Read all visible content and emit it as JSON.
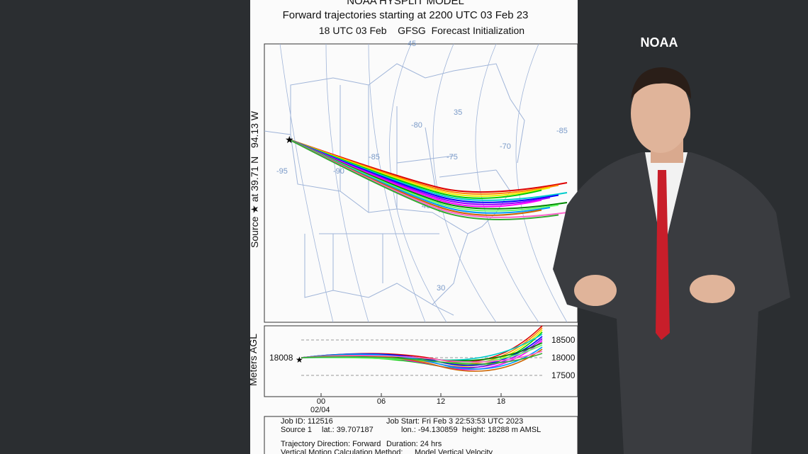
{
  "header": {
    "title": "NOAA HYSPLIT MODEL",
    "subtitle": "Forward trajectories starting at 2200 UTC 03 Feb 23",
    "init": "18 UTC 03 Feb    GFSG  Forecast Initialization"
  },
  "side_label": "Source ★ at 39.71 N   94.13 W",
  "map_labels": [
    "45",
    "-95",
    "-90",
    "-85",
    "-80",
    "-75",
    "-70",
    "-85",
    "40",
    "35",
    "30"
  ],
  "height_panel": {
    "axis_label": "Meters AGL",
    "source_height": "18008",
    "ticks": [
      "18500",
      "18000",
      "17500"
    ],
    "time_ticks": [
      "00",
      "06",
      "12",
      "18"
    ],
    "date": "02/04"
  },
  "footer": {
    "lines": [
      [
        "Job ID: 112516",
        "Job Start: Fri Feb  3 22:53:53 UTC 2023"
      ],
      [
        "Source 1",
        "lat.: 39.707187",
        "lon.: -94.130859",
        "height: 18288 m AMSL"
      ],
      [
        "Trajectory Direction: Forward",
        "Duration: 24 hrs"
      ],
      [
        "Vertical Motion Calculation Method:",
        "Model Vertical Velocity"
      ]
    ]
  },
  "brand": "NOAA"
}
